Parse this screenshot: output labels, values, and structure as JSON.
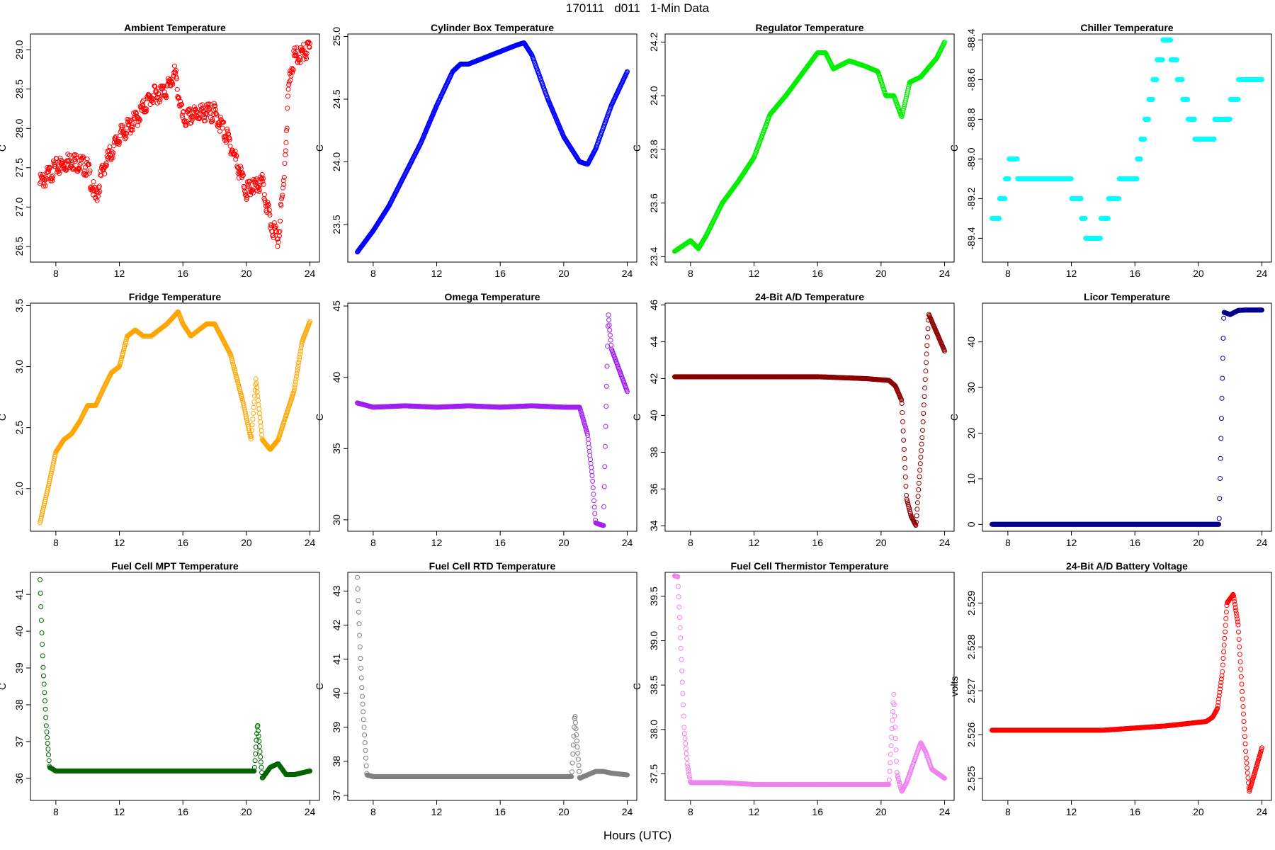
{
  "figure": {
    "title": "170111   d011   1-Min Data",
    "xlabel": "Hours (UTC)"
  },
  "chart_data": [
    {
      "type": "scatter",
      "title": "Ambient Temperature",
      "xlabel": "",
      "ylabel": "C",
      "xlim": [
        6.4,
        24.6
      ],
      "ylim": [
        26.3,
        29.2
      ],
      "xticks": [
        8,
        12,
        16,
        20,
        24
      ],
      "yticks": [
        26.5,
        27.0,
        27.5,
        28.0,
        28.5,
        29.0
      ],
      "color": "#ff0000",
      "noise": 0.12,
      "series": [
        {
          "x": [
            7,
            8,
            9,
            10,
            10.5,
            11,
            12,
            13,
            14,
            15,
            15.5,
            16,
            17,
            18,
            19,
            20,
            21,
            21.5,
            22,
            22.3,
            22.7,
            23,
            24
          ],
          "y": [
            27.3,
            27.5,
            27.6,
            27.5,
            27.1,
            27.5,
            27.9,
            28.1,
            28.4,
            28.5,
            28.7,
            28.1,
            28.2,
            28.2,
            27.8,
            27.2,
            27.3,
            26.8,
            26.6,
            27.2,
            28.6,
            28.9,
            29.0
          ]
        }
      ]
    },
    {
      "type": "scatter",
      "title": "Cylinder Box Temperature",
      "xlabel": "",
      "ylabel": "C",
      "xlim": [
        6.4,
        24.6
      ],
      "ylim": [
        23.2,
        25.02
      ],
      "xticks": [
        8,
        12,
        16,
        20,
        24
      ],
      "yticks": [
        23.5,
        24.0,
        24.5,
        25.0
      ],
      "color": "#0000ff",
      "noise": 0,
      "series": [
        {
          "x": [
            7,
            8,
            9,
            10,
            11,
            12,
            13,
            13.5,
            14,
            15,
            16,
            17,
            17.5,
            18,
            19,
            20,
            20.5,
            21,
            21.5,
            22,
            23,
            24
          ],
          "y": [
            23.28,
            23.45,
            23.65,
            23.9,
            24.15,
            24.45,
            24.72,
            24.78,
            24.78,
            24.83,
            24.88,
            24.93,
            24.95,
            24.85,
            24.5,
            24.2,
            24.1,
            24.0,
            23.98,
            24.1,
            24.45,
            24.72
          ]
        }
      ]
    },
    {
      "type": "scatter",
      "title": "Regulator Temperature",
      "xlabel": "",
      "ylabel": "C",
      "xlim": [
        6.4,
        24.6
      ],
      "ylim": [
        23.38,
        24.23
      ],
      "xticks": [
        8,
        12,
        16,
        20,
        24
      ],
      "yticks": [
        23.4,
        23.6,
        23.8,
        24.0,
        24.2
      ],
      "color": "#00ee00",
      "noise": 0,
      "series": [
        {
          "x": [
            7,
            8,
            8.5,
            9,
            10,
            11,
            12,
            13,
            14,
            15,
            16,
            16.5,
            17,
            18,
            19,
            19.8,
            20.3,
            20.8,
            21.3,
            21.8,
            22.5,
            23.5,
            24
          ],
          "y": [
            23.42,
            23.46,
            23.43,
            23.48,
            23.6,
            23.68,
            23.77,
            23.93,
            24.0,
            24.08,
            24.16,
            24.16,
            24.1,
            24.13,
            24.11,
            24.09,
            24.0,
            24.0,
            23.92,
            24.05,
            24.07,
            24.14,
            24.2
          ]
        }
      ]
    },
    {
      "type": "scatter",
      "title": "Chiller Temperature",
      "xlabel": "",
      "ylabel": "C",
      "xlim": [
        6.4,
        24.6
      ],
      "ylim": [
        -89.52,
        -88.37
      ],
      "xticks": [
        8,
        12,
        16,
        20,
        24
      ],
      "yticks": [
        -89.4,
        -89.2,
        -89.0,
        -88.8,
        -88.6,
        -88.4
      ],
      "color": "#00ffff",
      "noise": 0,
      "step": 0.1,
      "series": [
        {
          "x": [
            7,
            7.7,
            8.2,
            9,
            10,
            11,
            12,
            12.5,
            13,
            13.5,
            14,
            15,
            16,
            16.5,
            17,
            17.5,
            18,
            18.5,
            19,
            19.5,
            20,
            20.5,
            21,
            22,
            22.5,
            23,
            24
          ],
          "y": [
            -89.35,
            -89.2,
            -89.0,
            -89.1,
            -89.15,
            -89.05,
            -89.15,
            -89.2,
            -89.4,
            -89.45,
            -89.3,
            -89.15,
            -89.1,
            -88.9,
            -88.7,
            -88.5,
            -88.4,
            -88.5,
            -88.65,
            -88.8,
            -88.9,
            -88.95,
            -88.85,
            -88.75,
            -88.65,
            -88.6,
            -88.6
          ]
        }
      ]
    },
    {
      "type": "scatter",
      "title": "Fridge Temperature",
      "xlabel": "",
      "ylabel": "C",
      "xlim": [
        6.4,
        24.6
      ],
      "ylim": [
        1.65,
        3.52
      ],
      "xticks": [
        8,
        12,
        16,
        20,
        24
      ],
      "yticks": [
        2.0,
        2.5,
        3.0,
        3.5
      ],
      "color": "#ffa500",
      "noise": 0,
      "series": [
        {
          "x": [
            7,
            7.5,
            8,
            8.5,
            9,
            9.5,
            10,
            10.5,
            11,
            11.5,
            12,
            12.5,
            13,
            13.5,
            14,
            15,
            15.7,
            16,
            16.5,
            17,
            17.5,
            18,
            19,
            19.8,
            20.3,
            20.6,
            21,
            21.5,
            22,
            23,
            23.5,
            24
          ],
          "y": [
            1.72,
            2.0,
            2.3,
            2.4,
            2.45,
            2.55,
            2.68,
            2.68,
            2.82,
            2.95,
            3.0,
            3.25,
            3.3,
            3.25,
            3.25,
            3.35,
            3.45,
            3.35,
            3.25,
            3.3,
            3.35,
            3.35,
            3.1,
            2.7,
            2.4,
            2.9,
            2.4,
            2.32,
            2.4,
            2.8,
            3.2,
            3.37
          ]
        }
      ]
    },
    {
      "type": "scatter",
      "title": "Omega Temperature",
      "xlabel": "",
      "ylabel": "C",
      "xlim": [
        6.4,
        24.6
      ],
      "ylim": [
        29.2,
        45.2
      ],
      "xticks": [
        8,
        12,
        16,
        20,
        24
      ],
      "yticks": [
        30,
        35,
        40,
        45
      ],
      "color": "#a020f0",
      "noise": 0,
      "series": [
        {
          "x": [
            7,
            8,
            10,
            12,
            14,
            16,
            18,
            20,
            21,
            21.5,
            21.8,
            22,
            22.2,
            22.5,
            22.8,
            23,
            23.5,
            24
          ],
          "y": [
            38.2,
            37.9,
            38.0,
            37.9,
            38.0,
            37.9,
            38.0,
            37.9,
            37.9,
            36.0,
            33.0,
            29.8,
            29.7,
            29.6,
            44.5,
            42.0,
            40.5,
            39.0
          ]
        }
      ]
    },
    {
      "type": "scatter",
      "title": "24-Bit A/D Temperature",
      "xlabel": "",
      "ylabel": "C",
      "xlim": [
        6.4,
        24.6
      ],
      "ylim": [
        33.7,
        46.1
      ],
      "xticks": [
        8,
        12,
        16,
        20,
        24
      ],
      "yticks": [
        34,
        36,
        38,
        40,
        42,
        44,
        46
      ],
      "color": "#8b0000",
      "noise": 0,
      "series": [
        {
          "x": [
            7,
            10,
            13,
            16,
            19,
            20.5,
            20.9,
            21.3,
            21.6,
            21.9,
            22.2,
            22.6,
            23,
            23.5,
            24
          ],
          "y": [
            42.1,
            42.1,
            42.1,
            42.1,
            42.0,
            41.9,
            41.6,
            40.8,
            35.5,
            34.5,
            34.0,
            39.0,
            45.5,
            44.5,
            43.5
          ]
        }
      ]
    },
    {
      "type": "scatter",
      "title": "Licor Temperature",
      "xlabel": "",
      "ylabel": "C",
      "xlim": [
        6.4,
        24.6
      ],
      "ylim": [
        -1.5,
        48.5
      ],
      "xticks": [
        8,
        12,
        16,
        20,
        24
      ],
      "yticks": [
        0,
        10,
        20,
        30,
        40
      ],
      "color": "#00008b",
      "noise": 0,
      "series": [
        {
          "x": [
            7,
            21.3,
            21.6,
            22,
            22.5,
            23,
            24
          ],
          "y": [
            0,
            0,
            46.5,
            46.0,
            46.9,
            47.0,
            47.0
          ]
        }
      ]
    },
    {
      "type": "scatter",
      "title": "Fuel Cell MPT Temperature",
      "xlabel": "",
      "ylabel": "C",
      "xlim": [
        6.4,
        24.6
      ],
      "ylim": [
        35.4,
        41.6
      ],
      "xticks": [
        8,
        12,
        16,
        20,
        24
      ],
      "yticks": [
        36,
        37,
        38,
        39,
        40,
        41
      ],
      "color": "#006400",
      "noise": 0,
      "series": [
        {
          "x": [
            7.0,
            7.1,
            7.2,
            7.3,
            7.4,
            7.6,
            8,
            12,
            16,
            20.5,
            20.7,
            21,
            21.5,
            22,
            22.5,
            23,
            24
          ],
          "y": [
            41.4,
            40.1,
            39.0,
            38.2,
            37.4,
            36.3,
            36.2,
            36.2,
            36.2,
            36.2,
            37.5,
            36.0,
            36.3,
            36.4,
            36.1,
            36.1,
            36.2
          ]
        }
      ]
    },
    {
      "type": "scatter",
      "title": "Fuel Cell RTD Temperature",
      "xlabel": "",
      "ylabel": "C",
      "xlim": [
        6.4,
        24.6
      ],
      "ylim": [
        36.85,
        43.55
      ],
      "xticks": [
        8,
        12,
        16,
        20,
        24
      ],
      "yticks": [
        37,
        38,
        39,
        40,
        41,
        42,
        43
      ],
      "color": "#808080",
      "noise": 0,
      "series": [
        {
          "x": [
            7.0,
            7.1,
            7.2,
            7.3,
            7.4,
            7.6,
            8,
            12,
            16,
            20.5,
            20.7,
            21,
            21.5,
            22,
            22.5,
            23,
            24
          ],
          "y": [
            43.4,
            42.2,
            41.0,
            40.0,
            39.2,
            37.6,
            37.55,
            37.55,
            37.55,
            37.55,
            39.4,
            37.5,
            37.6,
            37.7,
            37.7,
            37.65,
            37.6
          ]
        }
      ]
    },
    {
      "type": "scatter",
      "title": "Fuel Cell Thermistor Temperature",
      "xlabel": "",
      "ylabel": "C",
      "xlim": [
        6.4,
        24.6
      ],
      "ylim": [
        37.2,
        39.77
      ],
      "xticks": [
        8,
        12,
        16,
        20,
        24
      ],
      "yticks": [
        37.5,
        38.0,
        38.5,
        39.0,
        39.5
      ],
      "color": "#ee82ee",
      "noise": 0,
      "series": [
        {
          "x": [
            7.0,
            7.2,
            7.4,
            7.6,
            7.8,
            8,
            10,
            12,
            14,
            16,
            18,
            20.5,
            20.8,
            21,
            21.3,
            21.6,
            22,
            22.5,
            22.8,
            23.2,
            24
          ],
          "y": [
            39.73,
            39.72,
            38.9,
            38.0,
            37.6,
            37.4,
            37.4,
            37.38,
            37.38,
            37.38,
            37.38,
            37.38,
            38.4,
            37.5,
            37.3,
            37.4,
            37.6,
            37.85,
            37.75,
            37.55,
            37.45
          ]
        }
      ]
    },
    {
      "type": "scatter",
      "title": "24-Bit A/D Battery Voltage",
      "xlabel": "",
      "ylabel": "volts",
      "xlim": [
        6.4,
        24.6
      ],
      "ylim": [
        2.5245,
        2.5297
      ],
      "xticks": [
        8,
        12,
        16,
        20,
        24
      ],
      "yticks": [
        2.525,
        2.526,
        2.527,
        2.528,
        2.529
      ],
      "color": "#ff0000",
      "noise": 0,
      "series": [
        {
          "x": [
            7,
            10,
            14,
            18,
            20.5,
            20.9,
            21.2,
            21.5,
            21.8,
            22.2,
            22.5,
            23,
            23.2,
            23.6,
            24
          ],
          "y": [
            2.5261,
            2.5261,
            2.5261,
            2.5262,
            2.5263,
            2.5264,
            2.5266,
            2.5274,
            2.529,
            2.5292,
            2.5285,
            2.5255,
            2.5247,
            2.5252,
            2.5257
          ]
        }
      ]
    }
  ]
}
